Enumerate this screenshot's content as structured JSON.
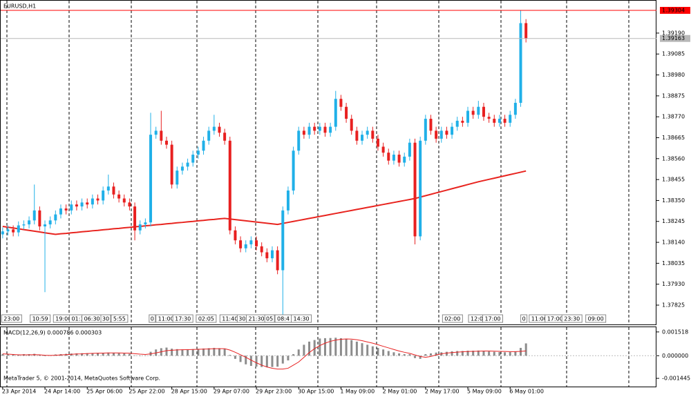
{
  "chart_data": [
    {
      "type": "candlestick",
      "title": "EURUSD,H1",
      "footer": "MetaTrader 5, © 2001-2014, MetaQuotes Software Corp.",
      "up_color": "#20b0e8",
      "down_color": "#e82020",
      "categories": [
        "23 Apr 2014",
        null,
        null,
        null,
        null,
        null,
        null,
        null,
        "24 Apr 14:00",
        null,
        null,
        null,
        null,
        null,
        null,
        null,
        "25 Apr 06:00",
        null,
        null,
        null,
        null,
        null,
        null,
        null,
        "25 Apr 22:00",
        null,
        null,
        null,
        null,
        null,
        null,
        null,
        "28 Apr 15:00",
        null,
        null,
        null,
        null,
        null,
        null,
        null,
        "29 Apr 07:00",
        null,
        null,
        null,
        null,
        null,
        null,
        null,
        "29 Apr 23:00",
        null,
        null,
        null,
        null,
        null,
        null,
        null,
        "30 Apr 15:00",
        null,
        null,
        null,
        null,
        null,
        null,
        null,
        "1 May 09:00",
        null,
        null,
        null,
        null,
        null,
        null,
        null,
        "2 May 01:00",
        null,
        null,
        null,
        null,
        null,
        null,
        null,
        "2 May 17:00",
        null,
        null,
        null,
        null,
        null,
        null,
        null,
        "5 May 09:00",
        null,
        null,
        null,
        null,
        null,
        null,
        null,
        "6 May 01:00",
        null,
        null,
        null
      ],
      "open": [
        1.3818,
        1.38195,
        1.38205,
        1.3819,
        1.38225,
        1.3823,
        1.3825,
        1.383,
        1.3822,
        1.3823,
        1.3825,
        1.3828,
        1.3831,
        1.383,
        1.3833,
        1.3832,
        1.3834,
        1.3833,
        1.3836,
        1.3835,
        1.384,
        1.3842,
        1.3838,
        1.3836,
        1.3834,
        1.3832,
        1.382,
        1.3823,
        1.3824,
        1.3868,
        1.387,
        1.3865,
        1.3863,
        1.3843,
        1.385,
        1.3852,
        1.3854,
        1.3858,
        1.386,
        1.3865,
        1.387,
        1.3872,
        1.3869,
        1.3865,
        1.382,
        1.3815,
        1.3811,
        1.3813,
        1.3815,
        1.3812,
        1.3809,
        1.3806,
        1.381,
        1.38,
        1.383,
        1.384,
        1.386,
        1.387,
        1.3868,
        1.3872,
        1.387,
        1.3872,
        1.3869,
        1.3872,
        1.3886,
        1.3882,
        1.3876,
        1.387,
        1.3865,
        1.3868,
        1.387,
        1.3866,
        1.3862,
        1.3859,
        1.3855,
        1.3858,
        1.3854,
        1.3857,
        1.3864,
        1.3817,
        1.3865,
        1.3876,
        1.387,
        1.3866,
        1.387,
        1.3868,
        1.3872,
        1.3875,
        1.3874,
        1.388,
        1.3878,
        1.3882,
        1.3877,
        1.3876,
        1.3874,
        1.3876,
        1.3874,
        1.3878,
        1.3884,
        1.3924
      ],
      "high": [
        1.38215,
        1.38225,
        1.38225,
        1.38245,
        1.3825,
        1.3827,
        1.3843,
        1.3832,
        1.3825,
        1.3827,
        1.383,
        1.3833,
        1.3833,
        1.3835,
        1.3835,
        1.3836,
        1.3836,
        1.3838,
        1.3838,
        1.3842,
        1.3848,
        1.3844,
        1.384,
        1.3838,
        1.3836,
        1.3834,
        1.3825,
        1.3826,
        1.3879,
        1.3872,
        1.388,
        1.3867,
        1.3865,
        1.3852,
        1.3854,
        1.3856,
        1.386,
        1.3862,
        1.3867,
        1.3872,
        1.3878,
        1.3874,
        1.3871,
        1.3867,
        1.3822,
        1.3817,
        1.3815,
        1.3817,
        1.3817,
        1.3814,
        1.3811,
        1.3812,
        1.3812,
        1.3832,
        1.3842,
        1.3862,
        1.3872,
        1.3872,
        1.3874,
        1.3874,
        1.3874,
        1.3874,
        1.3874,
        1.389,
        1.3888,
        1.3884,
        1.3878,
        1.3872,
        1.387,
        1.3872,
        1.3872,
        1.3868,
        1.3864,
        1.3861,
        1.386,
        1.386,
        1.3859,
        1.3866,
        1.3866,
        1.3867,
        1.3878,
        1.3878,
        1.3872,
        1.3872,
        1.3872,
        1.3874,
        1.3877,
        1.3877,
        1.3882,
        1.3882,
        1.3885,
        1.3884,
        1.3879,
        1.3878,
        1.3878,
        1.3878,
        1.388,
        1.3886,
        1.39304,
        1.3926
      ],
      "low": [
        1.3816,
        1.38175,
        1.3817,
        1.3817,
        1.38205,
        1.3821,
        1.3823,
        1.382,
        1.3789,
        1.3821,
        1.3823,
        1.3826,
        1.3828,
        1.3828,
        1.383,
        1.383,
        1.3831,
        1.3831,
        1.3833,
        1.3833,
        1.3838,
        1.3836,
        1.3834,
        1.3832,
        1.383,
        1.3815,
        1.3818,
        1.3821,
        1.3822,
        1.3866,
        1.3863,
        1.3861,
        1.3841,
        1.3841,
        1.3848,
        1.385,
        1.3852,
        1.3856,
        1.3858,
        1.3863,
        1.3868,
        1.3867,
        1.3863,
        1.3818,
        1.3813,
        1.3809,
        1.3809,
        1.3811,
        1.381,
        1.3807,
        1.3804,
        1.3804,
        1.3798,
        1.3777,
        1.3828,
        1.3838,
        1.3858,
        1.3866,
        1.3866,
        1.3868,
        1.3868,
        1.3867,
        1.3867,
        1.387,
        1.388,
        1.3874,
        1.3868,
        1.3863,
        1.3863,
        1.3866,
        1.3864,
        1.386,
        1.3857,
        1.3853,
        1.3853,
        1.3852,
        1.3852,
        1.3855,
        1.3813,
        1.3815,
        1.3863,
        1.3868,
        1.3864,
        1.3864,
        1.3866,
        1.3866,
        1.387,
        1.3872,
        1.3872,
        1.3876,
        1.3876,
        1.3875,
        1.3874,
        1.3872,
        1.3872,
        1.3872,
        1.3872,
        1.3876,
        1.3882,
        1.39143
      ],
      "close": [
        1.38195,
        1.38205,
        1.3819,
        1.38225,
        1.3823,
        1.3825,
        1.383,
        1.3822,
        1.3823,
        1.3825,
        1.3828,
        1.3831,
        1.383,
        1.3833,
        1.3832,
        1.3834,
        1.3833,
        1.3836,
        1.3835,
        1.384,
        1.3842,
        1.3838,
        1.3836,
        1.3834,
        1.3832,
        1.382,
        1.3823,
        1.3824,
        1.3868,
        1.387,
        1.3865,
        1.3863,
        1.3843,
        1.385,
        1.3852,
        1.3854,
        1.3858,
        1.386,
        1.3865,
        1.387,
        1.3872,
        1.3869,
        1.3865,
        1.382,
        1.3815,
        1.3811,
        1.3813,
        1.3815,
        1.3812,
        1.3809,
        1.3806,
        1.381,
        1.38,
        1.383,
        1.384,
        1.386,
        1.387,
        1.3868,
        1.3872,
        1.387,
        1.3872,
        1.3869,
        1.3872,
        1.3886,
        1.3882,
        1.3876,
        1.387,
        1.3865,
        1.3868,
        1.387,
        1.3866,
        1.3862,
        1.3859,
        1.3855,
        1.3858,
        1.3854,
        1.3857,
        1.3864,
        1.3817,
        1.3865,
        1.3876,
        1.387,
        1.3866,
        1.387,
        1.3868,
        1.3872,
        1.3875,
        1.3874,
        1.388,
        1.3878,
        1.3882,
        1.3877,
        1.3876,
        1.3874,
        1.3876,
        1.3874,
        1.3878,
        1.3884,
        1.3924,
        1.39163
      ],
      "moving_average": {
        "color": "#e8231e",
        "values": [
          1.3822,
          1.38216,
          1.38212,
          1.38208,
          1.38204,
          1.382,
          1.38196,
          1.38192,
          1.38188,
          1.38184,
          1.3818,
          1.38183,
          1.38185,
          1.38188,
          1.3819,
          1.38193,
          1.38195,
          1.38198,
          1.382,
          1.38203,
          1.38205,
          1.38208,
          1.3821,
          1.38213,
          1.38215,
          1.38218,
          1.3822,
          1.38223,
          1.38225,
          1.38228,
          1.3823,
          1.38233,
          1.38235,
          1.38238,
          1.3824,
          1.38243,
          1.38245,
          1.38248,
          1.3825,
          1.38253,
          1.38255,
          1.38258,
          1.3826,
          1.38257,
          1.38254,
          1.38251,
          1.38248,
          1.38245,
          1.38242,
          1.38239,
          1.38236,
          1.38233,
          1.3823,
          1.38235,
          1.3824,
          1.38245,
          1.3825,
          1.38255,
          1.3826,
          1.38265,
          1.3827,
          1.38275,
          1.3828,
          1.38285,
          1.3829,
          1.38295,
          1.383,
          1.38305,
          1.3831,
          1.38315,
          1.3832,
          1.38325,
          1.3833,
          1.38335,
          1.3834,
          1.38345,
          1.3835,
          1.38355,
          1.3836,
          1.38367,
          1.38374,
          1.38381,
          1.38388,
          1.38395,
          1.38402,
          1.38409,
          1.38416,
          1.38423,
          1.3843,
          1.38437,
          1.38444,
          1.3845,
          1.38456,
          1.38462,
          1.38468,
          1.38474,
          1.3848,
          1.38486,
          1.38492,
          1.38498
        ]
      },
      "ylim": [
        1.37728,
        1.39356
      ],
      "yticks": [
        {
          "value": 1.3919,
          "label": "1.39190"
        },
        {
          "value": 1.39085,
          "label": "1.39085"
        },
        {
          "value": 1.3898,
          "label": "1.38980"
        },
        {
          "value": 1.38875,
          "label": "1.38875"
        },
        {
          "value": 1.3877,
          "label": "1.38770"
        },
        {
          "value": 1.38665,
          "label": "1.38665"
        },
        {
          "value": 1.3856,
          "label": "1.38560"
        },
        {
          "value": 1.38455,
          "label": "1.38455"
        },
        {
          "value": 1.3835,
          "label": "1.38350"
        },
        {
          "value": 1.38245,
          "label": "1.38245"
        },
        {
          "value": 1.3814,
          "label": "1.38140"
        },
        {
          "value": 1.38035,
          "label": "1.38035"
        },
        {
          "value": 1.3793,
          "label": "1.37930"
        },
        {
          "value": 1.37825,
          "label": "1.37825"
        }
      ],
      "price_lines": [
        {
          "value": 1.39304,
          "color": "#ff0000"
        },
        {
          "value": 1.39163,
          "color": "#b8b8b8"
        }
      ],
      "trade_labels": [
        {
          "label": "23:00",
          "x": 2.2
        },
        {
          "label": "10:59",
          "x": 7.6
        },
        {
          "label": "19:00",
          "x": 12
        },
        {
          "label": "01:3",
          "x": 14.7
        },
        {
          "label": "06:30",
          "x": 17.4
        },
        {
          "label": "30",
          "x": 20
        },
        {
          "label": "5:55",
          "x": 22.6
        },
        {
          "label": "0",
          "x": 28.8
        },
        {
          "label": "11:00",
          "x": 31.4
        },
        {
          "label": "17:30",
          "x": 34.6
        },
        {
          "label": "02:05",
          "x": 39
        },
        {
          "label": "11:40",
          "x": 43.5
        },
        {
          "label": "30",
          "x": 45.8
        },
        {
          "label": "21:30",
          "x": 48.5
        },
        {
          "label": "05",
          "x": 51
        },
        {
          "label": "08:4",
          "x": 53.6
        },
        {
          "label": "14:30",
          "x": 57
        },
        {
          "label": "02:00",
          "x": 85.6
        },
        {
          "label": "12:0",
          "x": 90.2
        },
        {
          "label": "17:00",
          "x": 93.2
        },
        {
          "label": "0",
          "x": 99.1
        },
        {
          "label": "11:00",
          "x": 102
        },
        {
          "label": "17:00",
          "x": 105
        },
        {
          "label": "23:30",
          "x": 108.2
        },
        {
          "label": "09:00",
          "x": 112.7
        }
      ]
    },
    {
      "type": "macd",
      "title": "MACD(12,26,9) 0.000786 0.000303",
      "histogram": {
        "color": "#8c8c8c",
        "values": [
          0.0001,
          0.0001,
          8e-05,
          8e-05,
          0.0001,
          0.0001,
          0.00012,
          5e-05,
          -3e-05,
          2e-05,
          8e-05,
          0.0001,
          0.00012,
          0.00014,
          0.00015,
          0.00016,
          0.00016,
          0.00017,
          0.00018,
          0.00019,
          0.0002,
          0.00018,
          0.00016,
          0.00014,
          0.00012,
          2e-05,
          -1e-05,
          2e-05,
          0.00025,
          0.0004,
          0.00048,
          0.00052,
          0.00045,
          0.00042,
          0.0004,
          0.0004,
          0.00042,
          0.00044,
          0.00046,
          0.00048,
          0.0005,
          0.00048,
          0.00045,
          5e-05,
          -0.0002,
          -0.0004,
          -0.00055,
          -0.00065,
          -0.0007,
          -0.00072,
          -0.00074,
          -0.00072,
          -0.0007,
          -0.0005,
          -0.0003,
          0.0001,
          0.0004,
          0.0007,
          0.0009,
          0.001,
          0.0011,
          0.00112,
          0.00113,
          0.00115,
          0.00112,
          0.00108,
          0.001,
          0.0009,
          0.0008,
          0.0007,
          0.0006,
          0.0005,
          0.0004,
          0.0003,
          0.00022,
          0.00015,
          0.0001,
          0.0001,
          -0.00015,
          -0.0002,
          0.0001,
          0.00015,
          0.0002,
          0.00022,
          0.00025,
          0.00028,
          0.0003,
          0.0003,
          0.00032,
          0.00032,
          0.00033,
          0.0003,
          0.00027,
          0.00025,
          0.00023,
          0.00022,
          0.00023,
          0.00028,
          0.0005,
          0.000786
        ]
      },
      "signal": {
        "color": "#e82020",
        "values": [
          0.00012,
          0.0001,
          8e-05,
          6e-05,
          6e-05,
          6e-05,
          7e-05,
          6e-05,
          3e-05,
          2e-05,
          3e-05,
          5e-05,
          7e-05,
          9e-05,
          0.00011,
          0.00012,
          0.00014,
          0.00015,
          0.00016,
          0.00017,
          0.00018,
          0.00018,
          0.00018,
          0.00017,
          0.00016,
          0.00013,
          0.0001,
          8e-05,
          0.00012,
          0.00018,
          0.00025,
          0.00032,
          0.00035,
          0.00037,
          0.00038,
          0.00039,
          0.0004,
          0.00041,
          0.00042,
          0.00043,
          0.00045,
          0.00045,
          0.00045,
          0.00036,
          0.00022,
          6e-05,
          -0.0001,
          -0.00028,
          -0.00045,
          -0.0006,
          -0.00072,
          -0.0008,
          -0.00085,
          -0.00085,
          -0.0008,
          -0.0006,
          -0.0004,
          -0.0001,
          0.0002,
          0.00045,
          0.00065,
          0.0008,
          0.00092,
          0.001,
          0.00105,
          0.00107,
          0.00106,
          0.00102,
          0.00096,
          0.00088,
          0.0008,
          0.0007,
          0.0006,
          0.0005,
          0.0004,
          0.0003,
          0.00022,
          0.00015,
          5e-05,
          -5e-05,
          -0.0001,
          -5e-05,
          5e-05,
          0.00012,
          0.00017,
          0.0002,
          0.00023,
          0.00025,
          0.00027,
          0.00028,
          0.00029,
          0.0003,
          0.0003,
          0.00029,
          0.00028,
          0.00027,
          0.00026,
          0.00026,
          0.00028,
          0.000303
        ]
      },
      "ylim": [
        -0.00197,
        0.00182
      ],
      "yticks": [
        0.001518,
        {
          "value": 0,
          "label": "0.000000"
        },
        -0.001445
      ]
    }
  ]
}
